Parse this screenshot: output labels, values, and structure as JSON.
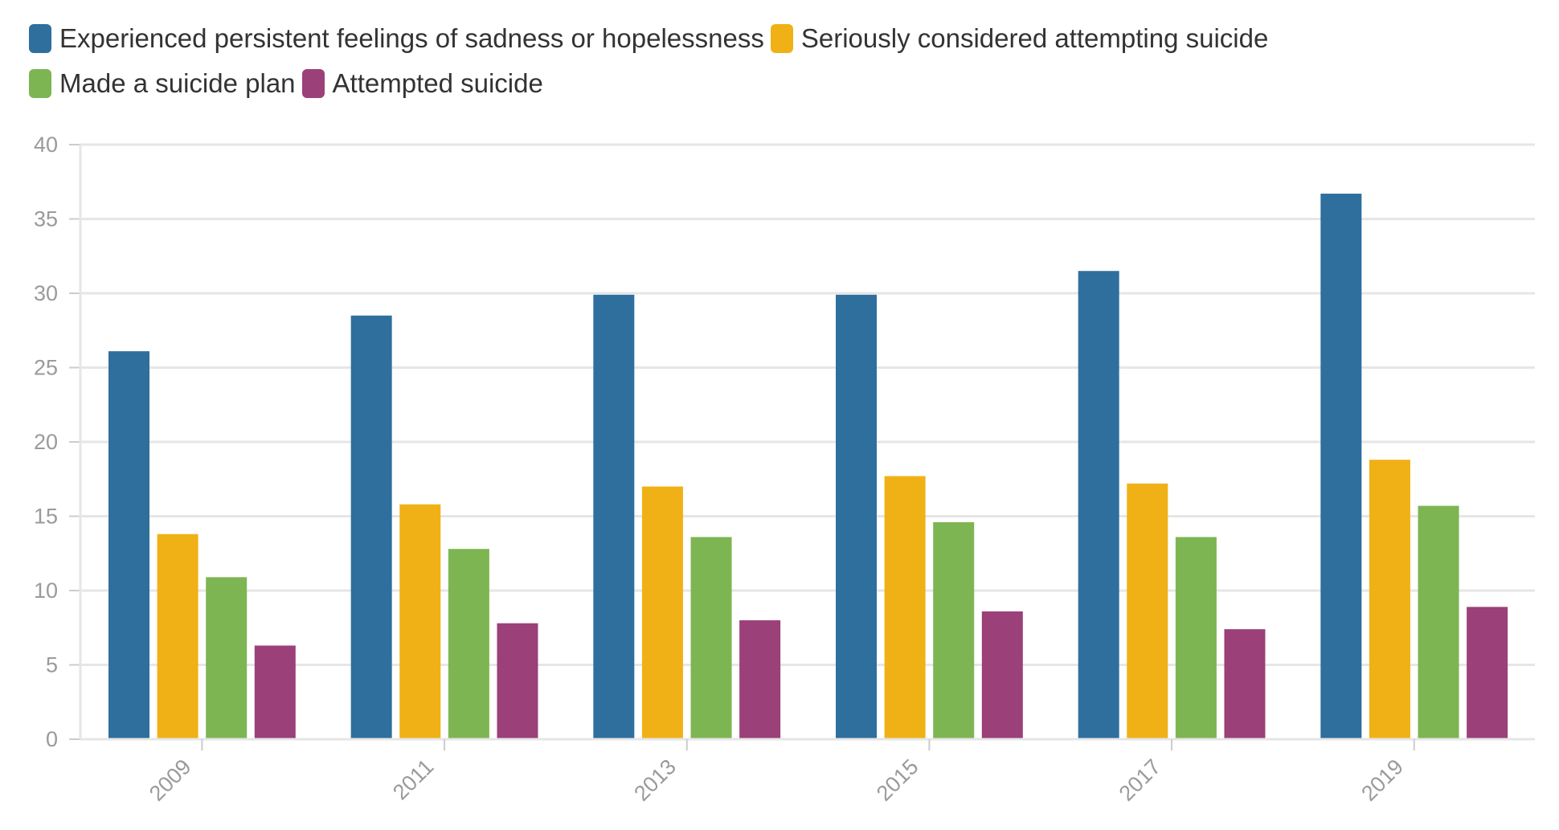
{
  "chart_data": {
    "type": "bar",
    "categories": [
      "2009",
      "2011",
      "2013",
      "2015",
      "2017",
      "2019"
    ],
    "series": [
      {
        "name": "Experienced persistent feelings of sadness or hopelessness",
        "color": "#2e6f9e",
        "values": [
          26.1,
          28.5,
          29.9,
          29.9,
          31.5,
          36.7
        ]
      },
      {
        "name": "Seriously considered attempting suicide",
        "color": "#f0b116",
        "values": [
          13.8,
          15.8,
          17.0,
          17.7,
          17.2,
          18.8
        ]
      },
      {
        "name": "Made a suicide plan",
        "color": "#7db552",
        "values": [
          10.9,
          12.8,
          13.6,
          14.6,
          13.6,
          15.7
        ]
      },
      {
        "name": "Attempted suicide",
        "color": "#9b4078",
        "values": [
          6.3,
          7.8,
          8.0,
          8.6,
          7.4,
          8.9
        ]
      }
    ],
    "ylim": [
      0,
      40
    ],
    "yticks": [
      "0",
      "5",
      "10",
      "15",
      "20",
      "25",
      "30",
      "35",
      "40"
    ],
    "grid": true,
    "legend_position": "top-left",
    "title": "",
    "xlabel": "",
    "ylabel": ""
  }
}
